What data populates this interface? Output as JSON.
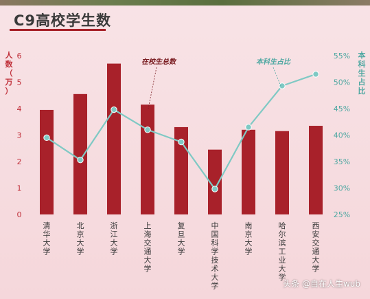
{
  "title": "C9高校学生数",
  "watermark": "头条 @自在人生wub",
  "colors": {
    "bar": "#a8212a",
    "line": "#7fc9c4",
    "left_axis_text": "#c0303a",
    "right_axis_text": "#4fa8a2",
    "title_underline": "#a62027"
  },
  "chart_data": {
    "type": "bar",
    "title": "C9高校学生数",
    "categories": [
      "清华大学",
      "北京大学",
      "浙江大学",
      "上海交通大学",
      "复旦大学",
      "中国科学技术大学",
      "南京大学",
      "哈尔滨工业大学",
      "西安交通大学"
    ],
    "series": [
      {
        "name": "在校生总数",
        "type": "bar",
        "axis": "left",
        "values": [
          3.95,
          4.55,
          5.7,
          4.15,
          3.3,
          2.45,
          3.2,
          3.15,
          3.35
        ]
      },
      {
        "name": "本科生占比",
        "type": "line",
        "axis": "right",
        "values": [
          39.5,
          35.3,
          44.8,
          41.0,
          38.7,
          29.8,
          41.5,
          49.3,
          51.5
        ]
      }
    ],
    "ylabel": "人数（万）",
    "y2label": "本科生占比",
    "ylim": [
      0,
      6
    ],
    "yticks": [
      "0",
      "1",
      "2",
      "3",
      "4",
      "5",
      "6"
    ],
    "y2lim": [
      25,
      55
    ],
    "y2ticks": [
      "25%",
      "30%",
      "35%",
      "40%",
      "45%",
      "50%",
      "55%"
    ],
    "annotations": [
      "在校生总数",
      "本科生占比"
    ],
    "legend": "none",
    "grid": false
  }
}
